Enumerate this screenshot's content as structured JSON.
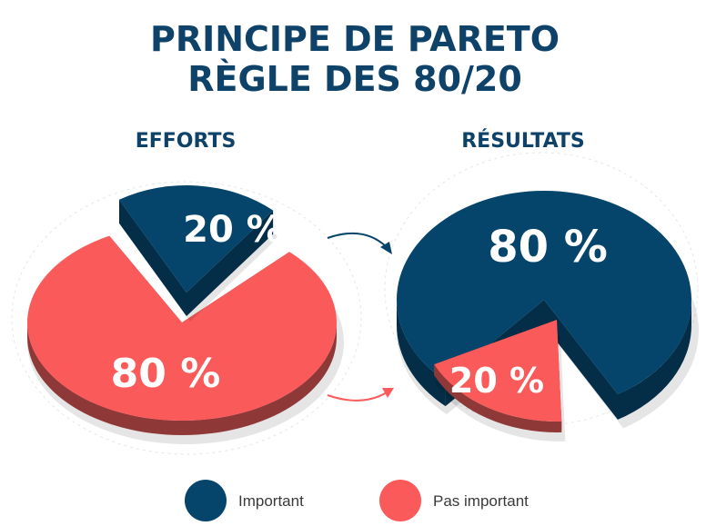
{
  "colors": {
    "important": "#05456b",
    "important_side": "#042e48",
    "not_important": "#fb5a5a",
    "not_important_side": "#8e3838",
    "title": "#0e4268"
  },
  "chart_data": [
    {
      "type": "pie",
      "title_line1": "PRINCIPE DE PARETO",
      "title_line2": "RÈGLE DES 80/20",
      "heading": "EFFORTS",
      "slices": [
        {
          "label": "20 %",
          "value": 20,
          "category": "Important",
          "exploded": true
        },
        {
          "label": "80 %",
          "value": 80,
          "category": "Pas important",
          "exploded": false
        }
      ]
    },
    {
      "type": "pie",
      "heading": "RÉSULTATS",
      "slices": [
        {
          "label": "80 %",
          "value": 80,
          "category": "Important",
          "exploded": false
        },
        {
          "label": "20 %",
          "value": 20,
          "category": "Pas important",
          "exploded": true
        }
      ]
    }
  ],
  "legend": {
    "items": [
      {
        "label": "Important",
        "color": "#05456b"
      },
      {
        "label": "Pas important",
        "color": "#fb5a5a"
      }
    ]
  }
}
